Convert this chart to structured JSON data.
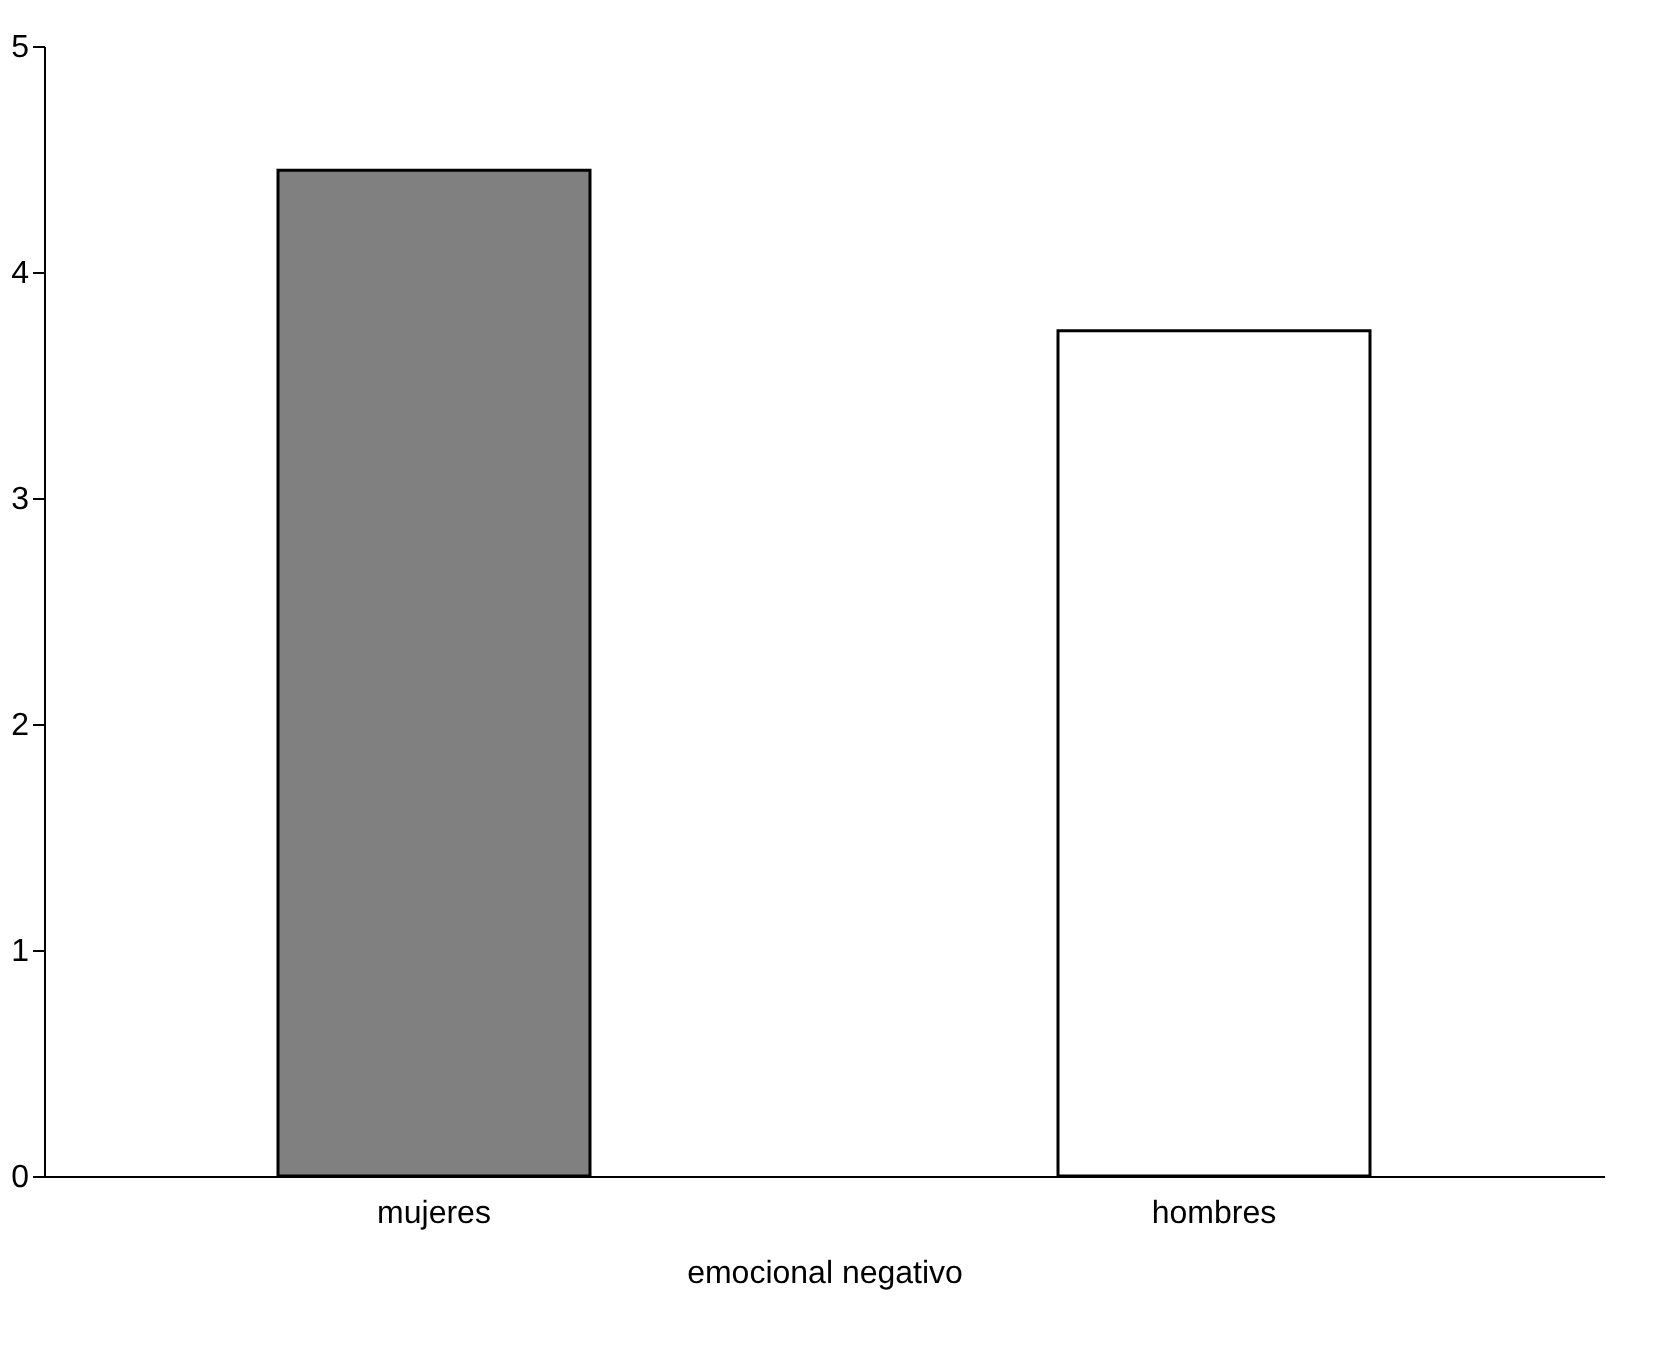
{
  "chart_data": {
    "type": "bar",
    "xlabel": "emocional negativo",
    "categories": [
      "mujeres",
      "hombres"
    ],
    "values": [
      4.45,
      3.74
    ],
    "colors": [
      "#808080",
      "#ffffff"
    ],
    "ylim": [
      0,
      5
    ],
    "yticks": [
      0,
      1,
      2,
      3,
      4,
      5
    ],
    "grid": false
  }
}
